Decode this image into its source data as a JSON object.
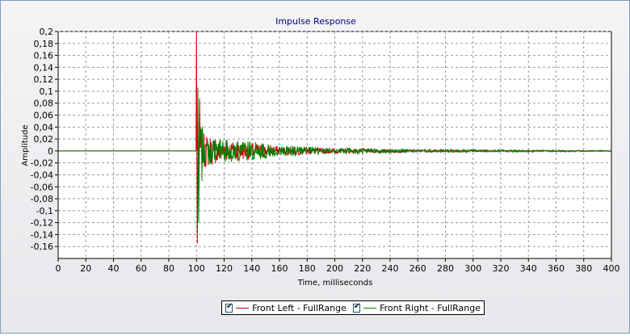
{
  "chart_data": {
    "type": "line",
    "title": "Impulse Response",
    "xlabel": "Time, milliseconds",
    "ylabel": "Amplitude",
    "xlim": [
      0,
      400
    ],
    "ylim": [
      -0.18,
      0.2
    ],
    "x_ticks": [
      "0",
      "20",
      "40",
      "60",
      "80",
      "100",
      "120",
      "140",
      "160",
      "180",
      "200",
      "220",
      "240",
      "260",
      "280",
      "300",
      "320",
      "340",
      "360",
      "380",
      "400"
    ],
    "y_ticks": [
      "0,2",
      "0,18",
      "0,16",
      "0,14",
      "0,12",
      "0,1",
      "0,08",
      "0,06",
      "0,04",
      "0,02",
      "0",
      "-0,02",
      "-0,04",
      "-0,06",
      "-0,08",
      "-0,1",
      "-0,12",
      "-0,14",
      "-0,16"
    ],
    "grid": true,
    "legend_position": "bottom-center",
    "series": [
      {
        "name": "Front Left - FullRange",
        "color": "#cc0000",
        "onset_ms": 100,
        "peak_max": 0.2,
        "peak_min": -0.155,
        "decay_points": [
          [
            100,
            0.2
          ],
          [
            101,
            -0.155
          ],
          [
            102,
            0.05
          ],
          [
            105,
            0.03
          ],
          [
            110,
            0.025
          ],
          [
            120,
            0.018
          ],
          [
            140,
            0.014
          ],
          [
            160,
            0.008
          ],
          [
            200,
            0.004
          ],
          [
            260,
            0.002
          ],
          [
            400,
            0.0005
          ]
        ]
      },
      {
        "name": "Front Right - FullRange",
        "color": "#008000",
        "onset_ms": 101,
        "peak_max": 0.106,
        "peak_min": -0.12,
        "decay_points": [
          [
            101,
            0.106
          ],
          [
            102,
            -0.12
          ],
          [
            103,
            0.06
          ],
          [
            105,
            0.035
          ],
          [
            110,
            0.028
          ],
          [
            120,
            0.02
          ],
          [
            140,
            0.016
          ],
          [
            160,
            0.01
          ],
          [
            200,
            0.005
          ],
          [
            260,
            0.003
          ],
          [
            400,
            0.001
          ]
        ]
      }
    ]
  }
}
